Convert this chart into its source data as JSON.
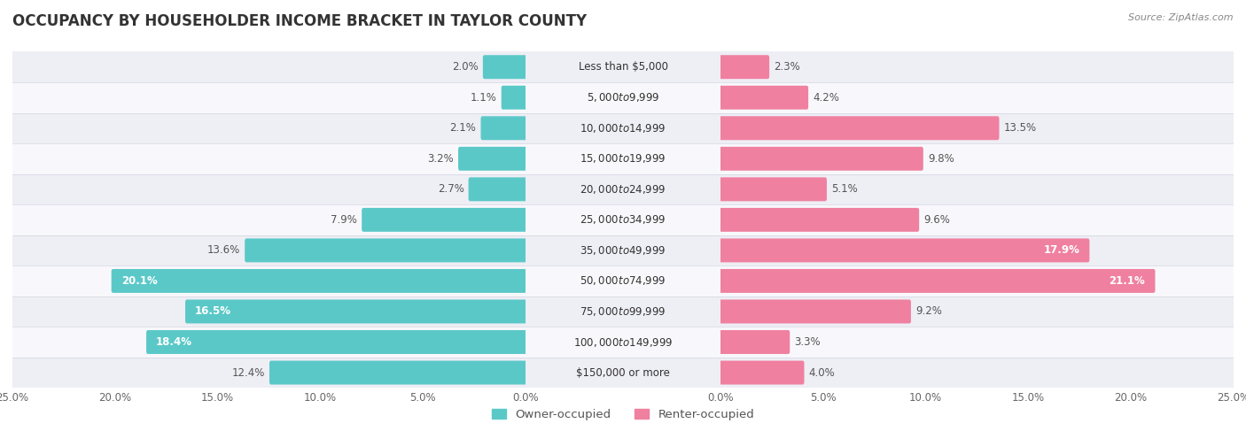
{
  "title": "OCCUPANCY BY HOUSEHOLDER INCOME BRACKET IN TAYLOR COUNTY",
  "source": "Source: ZipAtlas.com",
  "categories": [
    "Less than $5,000",
    "$5,000 to $9,999",
    "$10,000 to $14,999",
    "$15,000 to $19,999",
    "$20,000 to $24,999",
    "$25,000 to $34,999",
    "$35,000 to $49,999",
    "$50,000 to $74,999",
    "$75,000 to $99,999",
    "$100,000 to $149,999",
    "$150,000 or more"
  ],
  "owner_values": [
    2.0,
    1.1,
    2.1,
    3.2,
    2.7,
    7.9,
    13.6,
    20.1,
    16.5,
    18.4,
    12.4
  ],
  "renter_values": [
    2.3,
    4.2,
    13.5,
    9.8,
    5.1,
    9.6,
    17.9,
    21.1,
    9.2,
    3.3,
    4.0
  ],
  "owner_color": "#5BC8C8",
  "renter_color": "#F080A0",
  "row_bg_even": "#EEEEF5",
  "row_bg_odd": "#F8F8FC",
  "xlim": 25.0,
  "bar_height": 0.62,
  "title_fontsize": 12,
  "label_fontsize": 8.5,
  "cat_fontsize": 8.5,
  "tick_fontsize": 8.5,
  "source_fontsize": 8,
  "legend_fontsize": 9.5,
  "owner_label_inside_threshold": 14.0,
  "renter_label_inside_threshold": 14.0
}
